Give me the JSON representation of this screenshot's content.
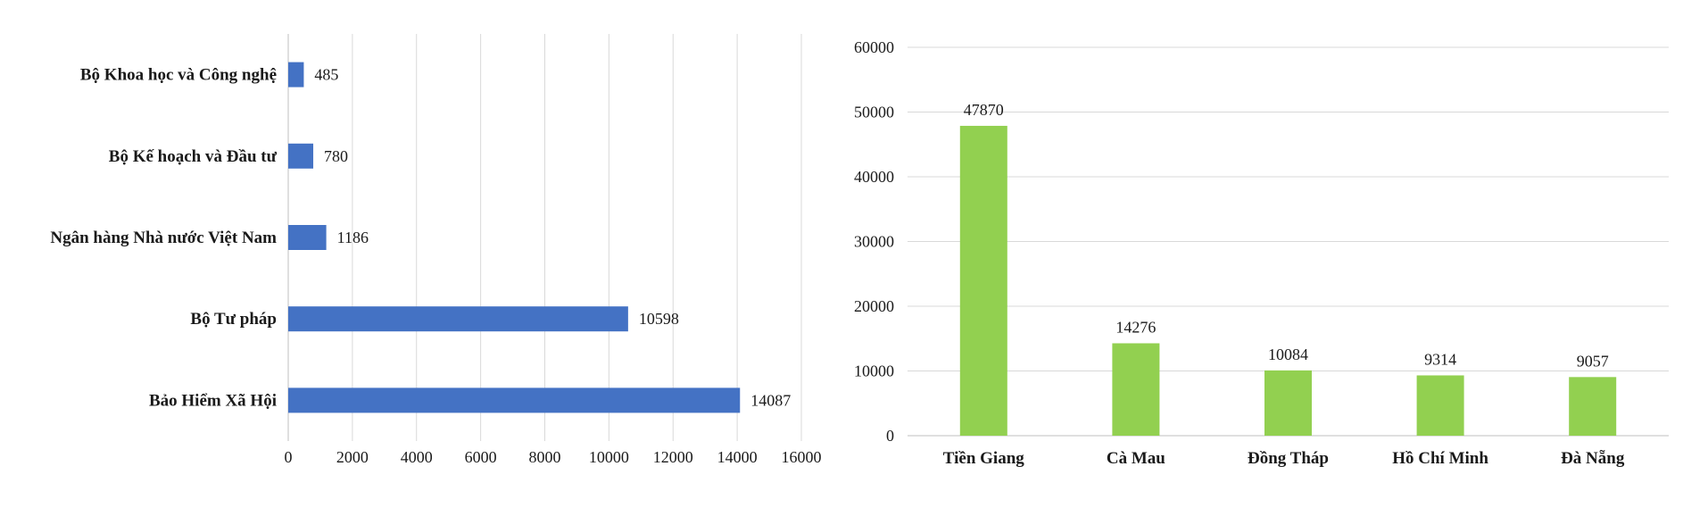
{
  "chart_data": [
    {
      "type": "bar",
      "orientation": "horizontal",
      "categories": [
        "Bộ Khoa học và Công nghệ",
        "Bộ Kế hoạch và Đầu tư",
        "Ngân hàng Nhà nước Việt Nam",
        "Bộ Tư pháp",
        "Bảo Hiểm Xã Hội"
      ],
      "values": [
        485,
        780,
        1186,
        10598,
        14087
      ],
      "xlim": [
        0,
        16000
      ],
      "xticks": [
        0,
        2000,
        4000,
        6000,
        8000,
        10000,
        12000,
        14000,
        16000
      ],
      "grid": true,
      "legend": "none",
      "color": "#4472c4"
    },
    {
      "type": "bar",
      "orientation": "vertical",
      "categories": [
        "Tiền Giang",
        "Cà Mau",
        "Đồng Tháp",
        "Hồ Chí Minh",
        "Đà Nẵng"
      ],
      "values": [
        47870,
        14276,
        10084,
        9314,
        9057
      ],
      "ylim": [
        0,
        60000
      ],
      "yticks": [
        0,
        10000,
        20000,
        30000,
        40000,
        50000,
        60000
      ],
      "grid": true,
      "legend": "none",
      "color": "#92d050"
    }
  ]
}
